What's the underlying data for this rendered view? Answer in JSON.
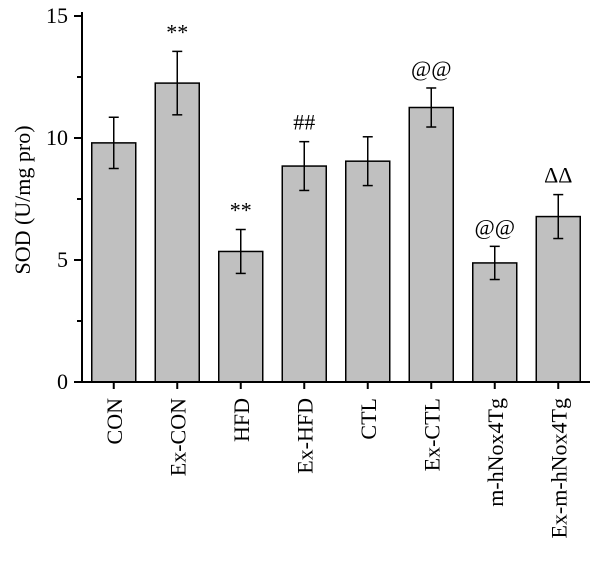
{
  "chart_data": {
    "type": "bar",
    "title": "",
    "xlabel": "",
    "ylabel": "SOD (U/mg pro)",
    "ylim": [
      0,
      15
    ],
    "yticks": [
      0,
      5,
      10,
      15
    ],
    "ytick_labels": [
      "0",
      "5",
      "10",
      "15"
    ],
    "categories": [
      "CON",
      "Ex-CON",
      "HFD",
      "Ex-HFD",
      "CTL",
      "Ex-CTL",
      "m-hNox4Tg",
      "Ex-m-hNox4Tg"
    ],
    "values": [
      9.8,
      12.25,
      5.35,
      8.85,
      9.05,
      11.25,
      4.88,
      6.78
    ],
    "errors": [
      1.05,
      1.3,
      0.9,
      1.0,
      1.0,
      0.8,
      0.68,
      0.9
    ],
    "annotations": [
      "",
      "**",
      "**",
      "##",
      "",
      "@@",
      "@@",
      "ΔΔ"
    ],
    "bar_color": "#c0c0c0",
    "grid": false,
    "legend": "none"
  }
}
